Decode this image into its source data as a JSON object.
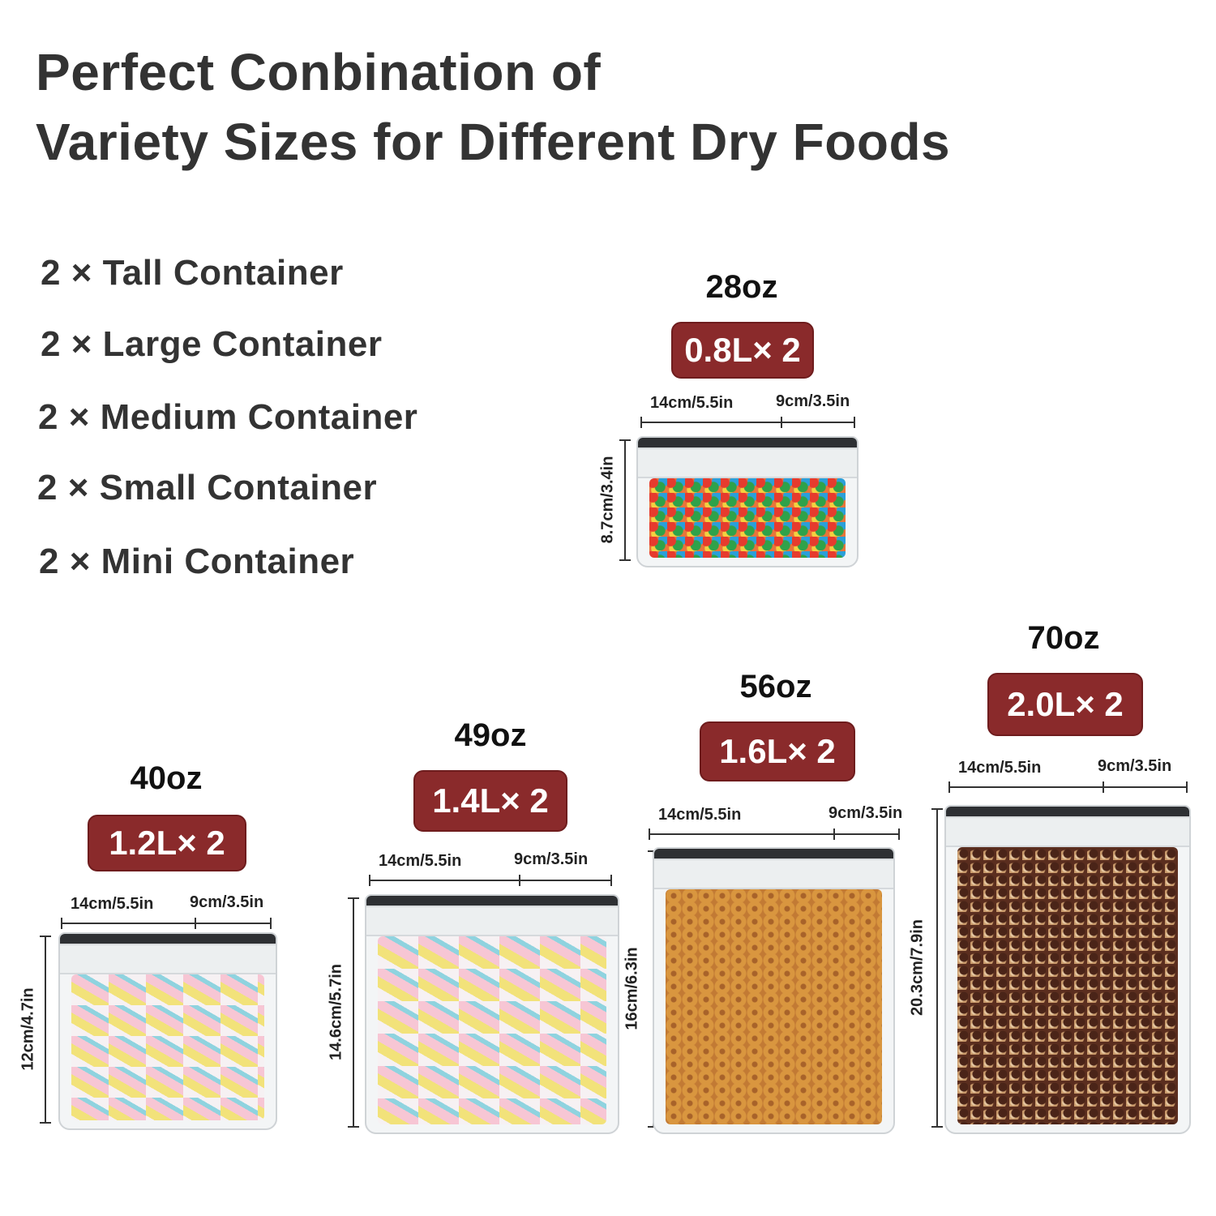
{
  "title": {
    "line1": "Perfect Conbination of",
    "line2": "Variety Sizes for Different Dry Foods"
  },
  "set_list": [
    "2 × Tall Container",
    "2 × Large Container",
    "2 × Medium Container",
    "2 × Small Container",
    "2 × Mini Container"
  ],
  "containers": [
    {
      "oz": "28oz",
      "capacity": "0.8L× 2",
      "width": "14cm/5.5in",
      "depth": "9cm/3.5in",
      "height": "8.7cm/3.4in",
      "contents": "candy-coated chocolates"
    },
    {
      "oz": "40oz",
      "capacity": "1.2L× 2",
      "width": "14cm/5.5in",
      "depth": "9cm/3.5in",
      "height": "12cm/4.7in",
      "contents": "marshmallows"
    },
    {
      "oz": "49oz",
      "capacity": "1.4L× 2",
      "width": "14cm/5.5in",
      "depth": "9cm/3.5in",
      "height": "14.6cm/5.7in",
      "contents": "marshmallows"
    },
    {
      "oz": "56oz",
      "capacity": "1.6L× 2",
      "width": "14cm/5.5in",
      "depth": "9cm/3.5in",
      "height": "16cm/6.3in",
      "contents": "cereal rings"
    },
    {
      "oz": "70oz",
      "capacity": "2.0L× 2",
      "width": "14cm/5.5in",
      "depth": "9cm/3.5in",
      "height": "20.3cm/7.9in",
      "contents": "chocolate cereal"
    }
  ],
  "colors": {
    "badge": "#8a2a2b",
    "title_text": "#333333",
    "lid": "#2e3033"
  }
}
